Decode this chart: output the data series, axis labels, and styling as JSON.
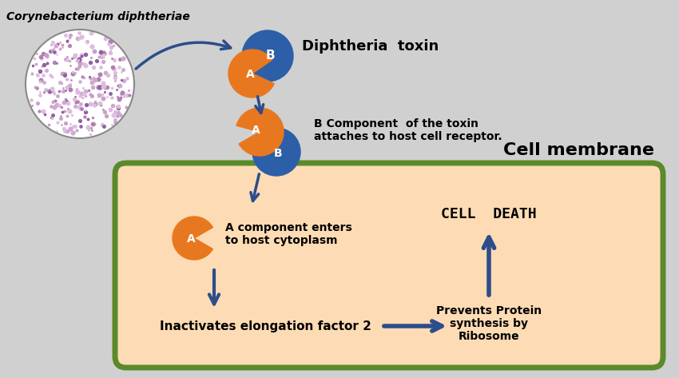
{
  "bg_color": "#d0d0d0",
  "cell_bg": "#fddbb4",
  "cell_border": "#5a8a2a",
  "arrow_color": "#2c4d8a",
  "orange_color": "#e87820",
  "blue_color": "#2c5fa8",
  "title_text": "Corynebacterium diphtheriae",
  "toxin_label": "Diphtheria  toxin",
  "b_component_text": "B Component  of the toxin\nattaches to host cell receptor.",
  "cell_membrane_text": "Cell membrane",
  "a_enters_text": "A component enters\nto host cytoplasm",
  "inactivates_text": "Inactivates elongation factor 2",
  "prevents_text": "Prevents Protein\nsynthesis by\nRibosome",
  "cell_death_text": "CELL  DEATH"
}
